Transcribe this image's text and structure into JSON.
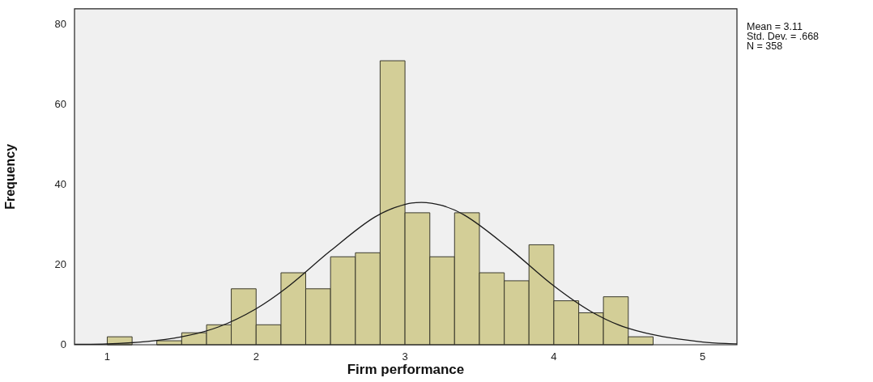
{
  "chart_data": {
    "type": "histogram",
    "xlabel": "Firm performance",
    "ylabel": "Frequency",
    "xlim": [
      0.78,
      5.23
    ],
    "xticks": [
      1,
      2,
      3,
      4,
      5
    ],
    "ylim": [
      0,
      84
    ],
    "yticks": [
      0,
      20,
      40,
      60,
      80
    ],
    "grid": false,
    "legend": false,
    "annotations": [
      "Mean = 3.11",
      "Std. Dev. = .668",
      "N = 358"
    ],
    "series": [
      {
        "type": "histogram",
        "color": "#d3ce97",
        "bins": [
          1,
          1.167,
          1.333,
          1.5,
          1.667,
          1.833,
          2,
          2.167,
          2.333,
          2.5,
          2.667,
          2.833,
          3,
          3.167,
          3.333,
          3.5,
          3.667,
          3.833,
          4,
          4.167,
          4.333,
          4.5,
          4.667
        ],
        "values": [
          2,
          0,
          1,
          3,
          5,
          14,
          5,
          18,
          14,
          22,
          23,
          71,
          33,
          22,
          33,
          18,
          16,
          25,
          11,
          8,
          12,
          2
        ]
      },
      {
        "type": "line",
        "color": "#1a1a1a",
        "x": [
          0.78,
          1,
          1.5,
          1.75,
          2,
          2.2,
          2.5,
          2.8,
          3,
          3.11,
          3.25,
          3.4,
          3.7,
          4,
          4.25,
          4.5,
          5,
          5.23
        ],
        "values": [
          0.1,
          0.2,
          2,
          4.5,
          9,
          14.1,
          23.5,
          32,
          35.1,
          35.6,
          34.8,
          32.4,
          24.1,
          14.7,
          8.3,
          4.1,
          0.7,
          0.2
        ]
      }
    ]
  }
}
